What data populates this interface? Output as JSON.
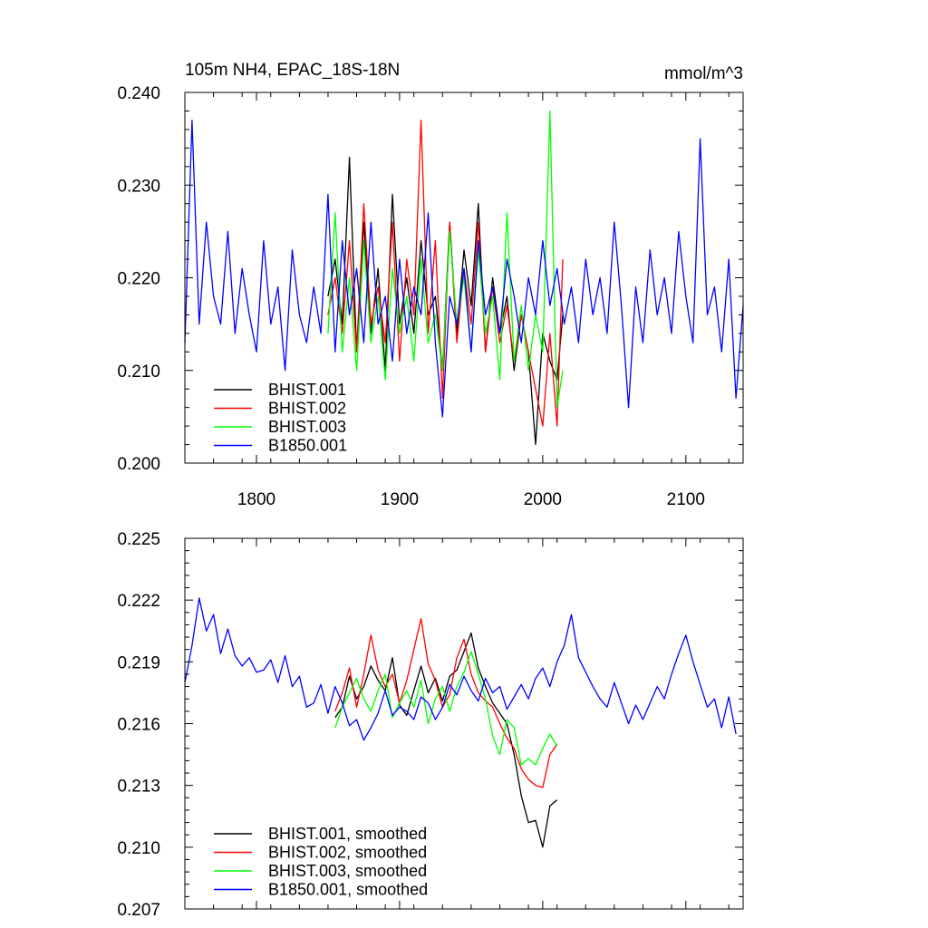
{
  "chart_data": [
    {
      "type": "line",
      "title": "105m NH4, EPAC_18S-18N",
      "units": "mmol/m^3",
      "xlim": [
        1750,
        2140
      ],
      "ylim": [
        0.2,
        0.24
      ],
      "x_ticks": [
        1800,
        1900,
        2000,
        2100
      ],
      "y_ticks": [
        "0.200",
        "0.210",
        "0.220",
        "0.230",
        "0.240"
      ],
      "grid": false,
      "legend_position": "bottom-left",
      "series": [
        {
          "name": "BHIST.001",
          "color": "#000000",
          "x": [
            1850,
            1855,
            1860,
            1865,
            1870,
            1875,
            1880,
            1885,
            1890,
            1895,
            1900,
            1905,
            1910,
            1915,
            1920,
            1925,
            1930,
            1935,
            1940,
            1945,
            1950,
            1955,
            1960,
            1965,
            1970,
            1975,
            1980,
            1985,
            1990,
            1995,
            2000,
            2005,
            2010,
            2014
          ],
          "y": [
            0.218,
            0.222,
            0.215,
            0.233,
            0.212,
            0.226,
            0.214,
            0.221,
            0.21,
            0.229,
            0.215,
            0.22,
            0.214,
            0.224,
            0.216,
            0.218,
            0.21,
            0.226,
            0.214,
            0.223,
            0.217,
            0.228,
            0.212,
            0.22,
            0.214,
            0.218,
            0.21,
            0.216,
            0.212,
            0.202,
            0.214,
            0.211,
            0.209,
            0.216
          ]
        },
        {
          "name": "BHIST.002",
          "color": "#ff0000",
          "x": [
            1850,
            1855,
            1860,
            1865,
            1870,
            1875,
            1880,
            1885,
            1890,
            1895,
            1900,
            1905,
            1910,
            1915,
            1920,
            1925,
            1930,
            1935,
            1940,
            1945,
            1950,
            1955,
            1960,
            1965,
            1970,
            1975,
            1980,
            1985,
            1990,
            1995,
            2000,
            2005,
            2010,
            2014
          ],
          "y": [
            0.216,
            0.22,
            0.214,
            0.224,
            0.212,
            0.228,
            0.215,
            0.219,
            0.213,
            0.226,
            0.211,
            0.222,
            0.216,
            0.237,
            0.214,
            0.224,
            0.207,
            0.226,
            0.213,
            0.221,
            0.215,
            0.226,
            0.212,
            0.219,
            0.213,
            0.217,
            0.211,
            0.216,
            0.212,
            0.208,
            0.204,
            0.214,
            0.204,
            0.222
          ]
        },
        {
          "name": "BHIST.003",
          "color": "#00ff00",
          "x": [
            1850,
            1855,
            1860,
            1865,
            1870,
            1875,
            1880,
            1885,
            1890,
            1895,
            1900,
            1905,
            1910,
            1915,
            1920,
            1925,
            1930,
            1935,
            1940,
            1945,
            1950,
            1955,
            1960,
            1965,
            1970,
            1975,
            1980,
            1985,
            1990,
            1995,
            2000,
            2005,
            2010,
            2014
          ],
          "y": [
            0.214,
            0.227,
            0.212,
            0.22,
            0.21,
            0.224,
            0.213,
            0.218,
            0.209,
            0.221,
            0.214,
            0.218,
            0.211,
            0.222,
            0.213,
            0.216,
            0.21,
            0.225,
            0.215,
            0.22,
            0.212,
            0.223,
            0.214,
            0.218,
            0.209,
            0.227,
            0.211,
            0.217,
            0.21,
            0.216,
            0.212,
            0.238,
            0.206,
            0.21
          ]
        },
        {
          "name": "B1850.001",
          "color": "#0000ff",
          "x": [
            1750,
            1755,
            1760,
            1765,
            1770,
            1775,
            1780,
            1785,
            1790,
            1795,
            1800,
            1805,
            1810,
            1815,
            1820,
            1825,
            1830,
            1835,
            1840,
            1845,
            1850,
            1855,
            1860,
            1865,
            1870,
            1875,
            1880,
            1885,
            1890,
            1895,
            1900,
            1905,
            1910,
            1915,
            1920,
            1925,
            1930,
            1935,
            1940,
            1945,
            1950,
            1955,
            1960,
            1965,
            1970,
            1975,
            1980,
            1985,
            1990,
            1995,
            2000,
            2005,
            2010,
            2015,
            2020,
            2025,
            2030,
            2035,
            2040,
            2045,
            2050,
            2055,
            2060,
            2065,
            2070,
            2075,
            2080,
            2085,
            2090,
            2095,
            2100,
            2105,
            2110,
            2115,
            2120,
            2125,
            2130,
            2135,
            2140
          ],
          "y": [
            0.213,
            0.237,
            0.215,
            0.226,
            0.218,
            0.215,
            0.225,
            0.214,
            0.221,
            0.216,
            0.212,
            0.224,
            0.215,
            0.219,
            0.21,
            0.223,
            0.216,
            0.213,
            0.219,
            0.214,
            0.229,
            0.212,
            0.224,
            0.216,
            0.221,
            0.213,
            0.226,
            0.215,
            0.218,
            0.211,
            0.222,
            0.214,
            0.219,
            0.216,
            0.227,
            0.213,
            0.205,
            0.218,
            0.215,
            0.221,
            0.212,
            0.224,
            0.216,
            0.219,
            0.214,
            0.222,
            0.218,
            0.213,
            0.22,
            0.216,
            0.224,
            0.217,
            0.221,
            0.215,
            0.219,
            0.213,
            0.222,
            0.216,
            0.22,
            0.214,
            0.226,
            0.217,
            0.206,
            0.219,
            0.213,
            0.223,
            0.216,
            0.22,
            0.214,
            0.225,
            0.218,
            0.213,
            0.235,
            0.216,
            0.219,
            0.212,
            0.222,
            0.207,
            0.217
          ]
        }
      ]
    },
    {
      "type": "line",
      "xlim": [
        1750,
        2140
      ],
      "ylim": [
        0.207,
        0.225
      ],
      "x_ticks": [
        1800,
        1900,
        2000,
        2100
      ],
      "y_ticks": [
        "0.207",
        "0.210",
        "0.213",
        "0.216",
        "0.219",
        "0.222",
        "0.225"
      ],
      "grid": false,
      "legend_position": "bottom-left",
      "series": [
        {
          "name": "BHIST.001, smoothed",
          "color": "#000000",
          "x": [
            1855,
            1860,
            1865,
            1870,
            1875,
            1880,
            1885,
            1890,
            1895,
            1900,
            1905,
            1910,
            1915,
            1920,
            1925,
            1930,
            1935,
            1940,
            1945,
            1950,
            1955,
            1960,
            1965,
            1970,
            1975,
            1980,
            1985,
            1990,
            1995,
            2000,
            2005,
            2010
          ],
          "y": [
            0.2163,
            0.2168,
            0.2183,
            0.2172,
            0.2178,
            0.2188,
            0.2181,
            0.2176,
            0.2192,
            0.2169,
            0.2164,
            0.2176,
            0.2188,
            0.2175,
            0.2182,
            0.2171,
            0.2183,
            0.2186,
            0.2195,
            0.2204,
            0.2187,
            0.2178,
            0.217,
            0.2165,
            0.216,
            0.2145,
            0.2125,
            0.2112,
            0.2113,
            0.21,
            0.212,
            0.2123
          ]
        },
        {
          "name": "BHIST.002, smoothed",
          "color": "#ff0000",
          "x": [
            1855,
            1860,
            1865,
            1870,
            1875,
            1880,
            1885,
            1890,
            1895,
            1900,
            1905,
            1910,
            1915,
            1920,
            1925,
            1930,
            1935,
            1940,
            1945,
            1950,
            1955,
            1960,
            1965,
            1970,
            1975,
            1980,
            1985,
            1990,
            1995,
            2000,
            2005,
            2010
          ],
          "y": [
            0.2166,
            0.2175,
            0.2187,
            0.2168,
            0.2184,
            0.2203,
            0.2186,
            0.2178,
            0.2184,
            0.217,
            0.2181,
            0.2196,
            0.2211,
            0.2189,
            0.2181,
            0.2168,
            0.2174,
            0.2192,
            0.2201,
            0.2184,
            0.2175,
            0.2171,
            0.2168,
            0.216,
            0.2153,
            0.2148,
            0.2138,
            0.2133,
            0.213,
            0.2129,
            0.2145,
            0.215
          ]
        },
        {
          "name": "BHIST.003, smoothed",
          "color": "#00ff00",
          "x": [
            1855,
            1860,
            1865,
            1870,
            1875,
            1880,
            1885,
            1890,
            1895,
            1900,
            1905,
            1910,
            1915,
            1920,
            1925,
            1930,
            1935,
            1940,
            1945,
            1950,
            1955,
            1960,
            1965,
            1970,
            1975,
            1980,
            1985,
            1990,
            1995,
            2000,
            2005,
            2010
          ],
          "y": [
            0.2158,
            0.2168,
            0.2175,
            0.2182,
            0.2172,
            0.2166,
            0.2176,
            0.2184,
            0.2163,
            0.217,
            0.2176,
            0.2168,
            0.2181,
            0.216,
            0.2172,
            0.2178,
            0.2166,
            0.2178,
            0.2185,
            0.2195,
            0.2184,
            0.2172,
            0.2154,
            0.2145,
            0.2162,
            0.2158,
            0.214,
            0.2143,
            0.214,
            0.2148,
            0.2155,
            0.2149
          ]
        },
        {
          "name": "B1850.001, smoothed",
          "color": "#0000ff",
          "x": [
            1750,
            1755,
            1760,
            1765,
            1770,
            1775,
            1780,
            1785,
            1790,
            1795,
            1800,
            1805,
            1810,
            1815,
            1820,
            1825,
            1830,
            1835,
            1840,
            1845,
            1850,
            1855,
            1860,
            1865,
            1870,
            1875,
            1880,
            1885,
            1890,
            1895,
            1900,
            1905,
            1910,
            1915,
            1920,
            1925,
            1930,
            1935,
            1940,
            1945,
            1950,
            1955,
            1960,
            1965,
            1970,
            1975,
            1980,
            1985,
            1990,
            1995,
            2000,
            2005,
            2010,
            2015,
            2020,
            2025,
            2030,
            2035,
            2040,
            2045,
            2050,
            2055,
            2060,
            2065,
            2070,
            2075,
            2080,
            2085,
            2090,
            2095,
            2100,
            2105,
            2110,
            2115,
            2120,
            2125,
            2130,
            2135
          ],
          "y": [
            0.218,
            0.2198,
            0.2221,
            0.2205,
            0.2213,
            0.2194,
            0.2206,
            0.2193,
            0.2188,
            0.2192,
            0.2185,
            0.2186,
            0.2191,
            0.218,
            0.2193,
            0.2178,
            0.2183,
            0.2168,
            0.217,
            0.2179,
            0.2165,
            0.2178,
            0.217,
            0.2159,
            0.2162,
            0.2152,
            0.2158,
            0.2165,
            0.2176,
            0.2164,
            0.2168,
            0.2166,
            0.2162,
            0.2173,
            0.217,
            0.2162,
            0.2168,
            0.2179,
            0.2174,
            0.2183,
            0.2176,
            0.2171,
            0.2182,
            0.2175,
            0.2178,
            0.2167,
            0.2173,
            0.2179,
            0.2172,
            0.2182,
            0.2187,
            0.2178,
            0.219,
            0.2198,
            0.2213,
            0.2192,
            0.2185,
            0.2178,
            0.2172,
            0.2168,
            0.218,
            0.217,
            0.216,
            0.2169,
            0.2162,
            0.217,
            0.2178,
            0.2172,
            0.2184,
            0.2194,
            0.2203,
            0.219,
            0.2179,
            0.2168,
            0.2172,
            0.2158,
            0.2173,
            0.2155
          ]
        }
      ]
    }
  ]
}
